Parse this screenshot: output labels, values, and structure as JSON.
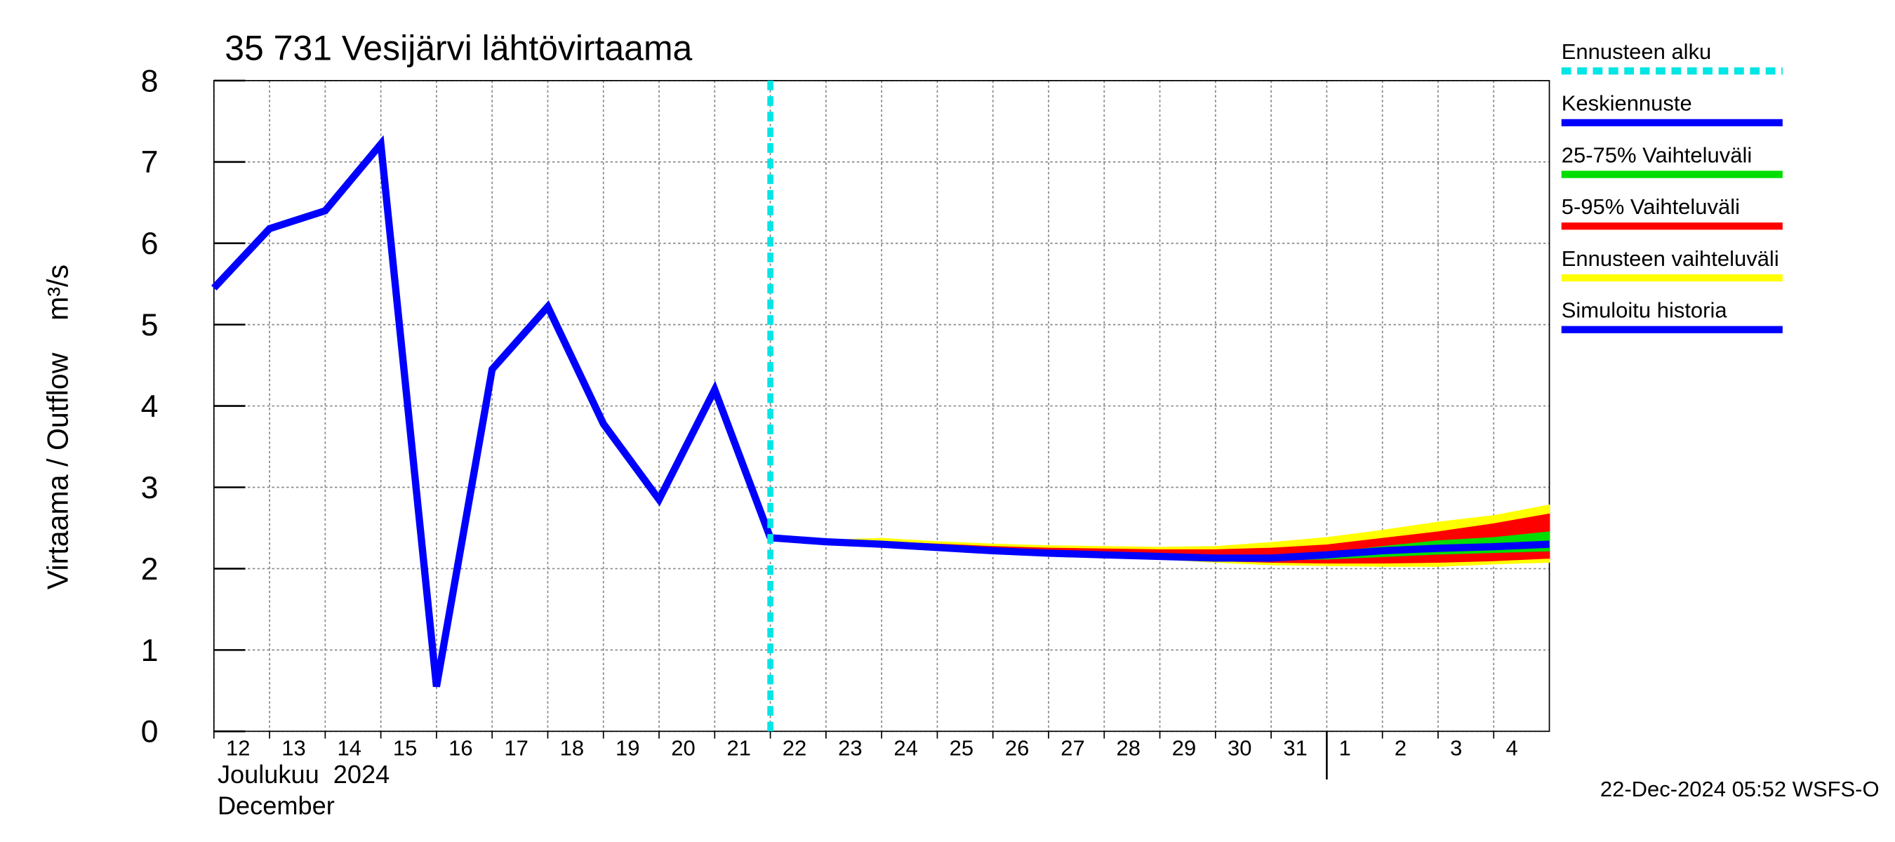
{
  "chart_data": {
    "type": "line",
    "title": "35 731 Vesijärvi lähtövirtaama",
    "y_label": "Virtaama / Outflow    m³/s",
    "x_label_fi": "Joulukuu  2024",
    "x_label_en": "December",
    "footer": "22-Dec-2024 05:52 WSFS-O",
    "xlim": [
      0,
      24
    ],
    "xticks": [
      {
        "value": 0,
        "label": "12"
      },
      {
        "value": 1,
        "label": "13"
      },
      {
        "value": 2,
        "label": "14"
      },
      {
        "value": 3,
        "label": "15"
      },
      {
        "value": 4,
        "label": "16"
      },
      {
        "value": 5,
        "label": "17"
      },
      {
        "value": 6,
        "label": "18"
      },
      {
        "value": 7,
        "label": "19"
      },
      {
        "value": 8,
        "label": "20"
      },
      {
        "value": 9,
        "label": "21"
      },
      {
        "value": 10,
        "label": "22"
      },
      {
        "value": 11,
        "label": "23"
      },
      {
        "value": 12,
        "label": "24"
      },
      {
        "value": 13,
        "label": "25"
      },
      {
        "value": 14,
        "label": "26"
      },
      {
        "value": 15,
        "label": "27"
      },
      {
        "value": 16,
        "label": "28"
      },
      {
        "value": 17,
        "label": "29"
      },
      {
        "value": 18,
        "label": "30"
      },
      {
        "value": 19,
        "label": "31"
      },
      {
        "value": 20,
        "label": "1"
      },
      {
        "value": 21,
        "label": "2"
      },
      {
        "value": 22,
        "label": "3"
      },
      {
        "value": 23,
        "label": "4"
      }
    ],
    "month_break": 20,
    "ylim": [
      0,
      8
    ],
    "yticks": [
      0,
      1,
      2,
      3,
      4,
      5,
      6,
      7,
      8
    ],
    "grid": true,
    "forecast_start": {
      "name": "Ennusteen alku",
      "color": "#00e5e5",
      "x": 10
    },
    "bands": [
      {
        "name": "Ennusteen vaihteluväli",
        "color": "#ffff00",
        "x": [
          10,
          11,
          12,
          13,
          14,
          15,
          16,
          17,
          18,
          19,
          20,
          21,
          22,
          23,
          24
        ],
        "upper": [
          2.38,
          2.35,
          2.37,
          2.33,
          2.3,
          2.28,
          2.27,
          2.26,
          2.27,
          2.32,
          2.38,
          2.47,
          2.57,
          2.65,
          2.78
        ],
        "lower": [
          2.38,
          2.32,
          2.28,
          2.24,
          2.2,
          2.17,
          2.15,
          2.12,
          2.08,
          2.05,
          2.04,
          2.03,
          2.03,
          2.06,
          2.08
        ]
      },
      {
        "name": "5-95% Vaihteluväli",
        "color": "#ff0000",
        "x": [
          10,
          11,
          12,
          13,
          14,
          15,
          16,
          17,
          18,
          19,
          20,
          21,
          22,
          23,
          24
        ],
        "upper": [
          2.38,
          2.34,
          2.33,
          2.3,
          2.27,
          2.25,
          2.24,
          2.23,
          2.23,
          2.25,
          2.29,
          2.37,
          2.45,
          2.55,
          2.67
        ],
        "lower": [
          2.38,
          2.32,
          2.29,
          2.25,
          2.21,
          2.18,
          2.16,
          2.13,
          2.1,
          2.08,
          2.07,
          2.07,
          2.08,
          2.1,
          2.13
        ]
      },
      {
        "name": "25-75% Vaihteluväli",
        "color": "#00dd00",
        "x": [
          10,
          11,
          12,
          13,
          14,
          15,
          16,
          17,
          18,
          19,
          20,
          21,
          22,
          23,
          24
        ],
        "upper": [
          2.38,
          2.33,
          2.31,
          2.28,
          2.24,
          2.21,
          2.19,
          2.17,
          2.16,
          2.16,
          2.19,
          2.27,
          2.34,
          2.38,
          2.45
        ],
        "lower": [
          2.38,
          2.33,
          2.3,
          2.26,
          2.22,
          2.19,
          2.17,
          2.15,
          2.12,
          2.11,
          2.12,
          2.15,
          2.18,
          2.2,
          2.22
        ]
      }
    ],
    "series": [
      {
        "name": "Keskiennuste",
        "color": "#0000ff",
        "x": [
          10,
          11,
          12,
          13,
          14,
          15,
          16,
          17,
          18,
          19,
          20,
          21,
          22,
          23,
          24
        ],
        "values": [
          2.38,
          2.33,
          2.3,
          2.26,
          2.22,
          2.19,
          2.17,
          2.15,
          2.13,
          2.13,
          2.17,
          2.22,
          2.25,
          2.27,
          2.3
        ]
      },
      {
        "name": "Simuloitu historia",
        "color": "#0000ff",
        "x": [
          0,
          1,
          2,
          3,
          4,
          5,
          6,
          7,
          8,
          9,
          10
        ],
        "values": [
          5.45,
          6.18,
          6.4,
          7.22,
          0.55,
          4.45,
          5.22,
          3.78,
          2.85,
          4.2,
          2.38
        ]
      }
    ]
  }
}
